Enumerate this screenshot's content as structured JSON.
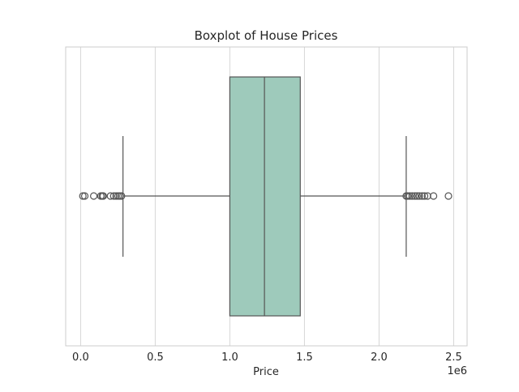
{
  "chart_data": {
    "type": "box",
    "title": "Boxplot of House Prices",
    "xlabel": "Price",
    "ylabel": "",
    "xlim": [
      -100000,
      2590000
    ],
    "x_ticks": [
      0,
      500000,
      1000000,
      1500000,
      2000000,
      2500000
    ],
    "x_tick_labels": [
      "0.0",
      "0.5",
      "1.0",
      "1.5",
      "2.0",
      "2.5"
    ],
    "x_offset_text": "1e6",
    "grid": "vertical",
    "box": {
      "whisker_low": 284000,
      "q1": 1000000,
      "median": 1232000,
      "q3": 1472000,
      "whisker_high": 2182000
    },
    "outliers": [
      15000,
      28000,
      88000,
      135000,
      145000,
      152000,
      200000,
      222000,
      238000,
      251000,
      262000,
      274000,
      2182000,
      2192000,
      2205000,
      2222000,
      2240000,
      2255000,
      2270000,
      2288000,
      2305000,
      2325000,
      2365000,
      2465000
    ],
    "colors": {
      "box_fill": "#9ecabb",
      "line": "#555555",
      "grid": "#d6d6d6",
      "frame": "#cccccc"
    }
  }
}
